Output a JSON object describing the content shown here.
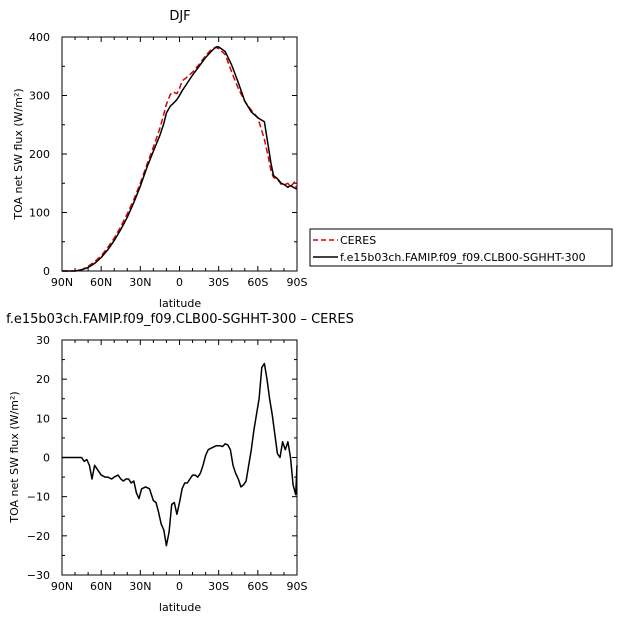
{
  "chart_data": [
    {
      "type": "line",
      "title": "DJF",
      "xlabel": "latitude",
      "ylabel": "TOA net SW flux (W/m²)",
      "xticks": [
        "90N",
        "60N",
        "30N",
        "0",
        "30S",
        "60S",
        "90S"
      ],
      "xlim": [
        90,
        -90
      ],
      "ylim": [
        0,
        400
      ],
      "yticks": [
        "0",
        "100",
        "200",
        "300",
        "400"
      ],
      "grid": false,
      "legend_placement": "outside-right",
      "series": [
        {
          "name": "CERES",
          "color": "#dd0000",
          "dash": true,
          "x": [
            90,
            85,
            80,
            75,
            70,
            65,
            60,
            55,
            50,
            45,
            40,
            35,
            30,
            25,
            20,
            15,
            12,
            10,
            7,
            5,
            2,
            0,
            -2,
            -5,
            -10,
            -15,
            -20,
            -25,
            -28,
            -30,
            -35,
            -40,
            -45,
            -50,
            -55,
            -60,
            -65,
            -68,
            -70,
            -72,
            -75,
            -78,
            -80,
            -83,
            -85,
            -88,
            -90
          ],
          "y": [
            0,
            0,
            0,
            2,
            8,
            16,
            26,
            40,
            56,
            76,
            98,
            122,
            150,
            182,
            212,
            244,
            268,
            285,
            302,
            306,
            303,
            312,
            325,
            330,
            340,
            353,
            368,
            380,
            382,
            380,
            370,
            340,
            312,
            290,
            275,
            262,
            225,
            195,
            172,
            160,
            157,
            148,
            147,
            150,
            144,
            152,
            140
          ]
        },
        {
          "name": "f.e15b03ch.FAMIP.f09_f09.CLB00-SGHHT-300",
          "color": "#000000",
          "dash": false,
          "x": [
            90,
            85,
            80,
            75,
            70,
            65,
            60,
            55,
            50,
            45,
            40,
            35,
            30,
            25,
            20,
            15,
            12,
            10,
            7,
            5,
            2,
            0,
            -2,
            -5,
            -10,
            -15,
            -20,
            -25,
            -28,
            -30,
            -35,
            -40,
            -45,
            -50,
            -55,
            -60,
            -65,
            -68,
            -70,
            -72,
            -75,
            -78,
            -80,
            -83,
            -85,
            -88,
            -90
          ],
          "y": [
            0,
            0,
            0,
            2,
            6,
            13,
            23,
            36,
            52,
            71,
            92,
            117,
            145,
            177,
            205,
            232,
            252,
            270,
            282,
            286,
            293,
            300,
            308,
            318,
            335,
            350,
            365,
            377,
            383,
            383,
            375,
            352,
            322,
            290,
            272,
            262,
            255,
            213,
            185,
            163,
            158,
            150,
            148,
            143,
            146,
            142,
            140
          ]
        }
      ]
    },
    {
      "type": "line",
      "title": "f.e15b03ch.FAMIP.f09_f09.CLB00-SGHHT-300 – CERES",
      "xlabel": "latitude",
      "ylabel": "TOA net SW flux (W/m²)",
      "xticks": [
        "90N",
        "60N",
        "30N",
        "0",
        "30S",
        "60S",
        "90S"
      ],
      "xlim": [
        90,
        -90
      ],
      "ylim": [
        -30,
        30
      ],
      "yticks": [
        "−30",
        "−20",
        "−10",
        "0",
        "10",
        "20",
        "30"
      ],
      "grid": false,
      "series": [
        {
          "color": "#000000",
          "dash": false,
          "x": [
            90,
            87,
            84,
            81,
            78,
            75,
            73,
            71,
            69,
            67,
            65,
            63,
            60,
            57,
            55,
            52,
            50,
            47,
            45,
            43,
            41,
            39,
            37,
            35,
            33,
            31,
            29,
            26,
            23,
            20,
            18,
            16,
            14,
            12,
            10,
            8,
            6,
            4,
            2,
            0,
            -2,
            -4,
            -6,
            -8,
            -10,
            -12,
            -14,
            -16,
            -18,
            -20,
            -22,
            -25,
            -28,
            -31,
            -33,
            -35,
            -37,
            -39,
            -41,
            -43,
            -45,
            -47,
            -49,
            -51,
            -53,
            -55,
            -57,
            -59,
            -61,
            -63,
            -65,
            -67,
            -69,
            -71,
            -73,
            -75,
            -77,
            -79,
            -81,
            -83,
            -85,
            -87,
            -89,
            -90
          ],
          "y": [
            0,
            0,
            0,
            0,
            0,
            0,
            -1,
            -0.5,
            -2,
            -5.5,
            -2,
            -3,
            -4.5,
            -5,
            -5,
            -5.5,
            -5,
            -4.5,
            -5.5,
            -6,
            -5.5,
            -5.5,
            -6.5,
            -6,
            -9,
            -10.5,
            -8,
            -7.5,
            -8,
            -11,
            -11.5,
            -14,
            -17,
            -18.5,
            -22.5,
            -19,
            -12,
            -11.5,
            -14.5,
            -11.5,
            -8,
            -6.5,
            -6.5,
            -5.5,
            -4.5,
            -4.5,
            -5,
            -4,
            -2,
            0.5,
            2,
            2.5,
            3,
            3,
            2.8,
            3.5,
            3.2,
            2,
            -2,
            -4,
            -5.5,
            -7.5,
            -7,
            -6,
            -2,
            2,
            7,
            11,
            15,
            23,
            24,
            20,
            15,
            11,
            6,
            1,
            0,
            4,
            2,
            4,
            0,
            -7,
            -9.5,
            -2
          ]
        }
      ]
    }
  ],
  "legend": {
    "ceres_label": "CERES",
    "model_label": "f.e15b03ch.FAMIP.f09_f09.CLB00-SGHHT-300"
  }
}
